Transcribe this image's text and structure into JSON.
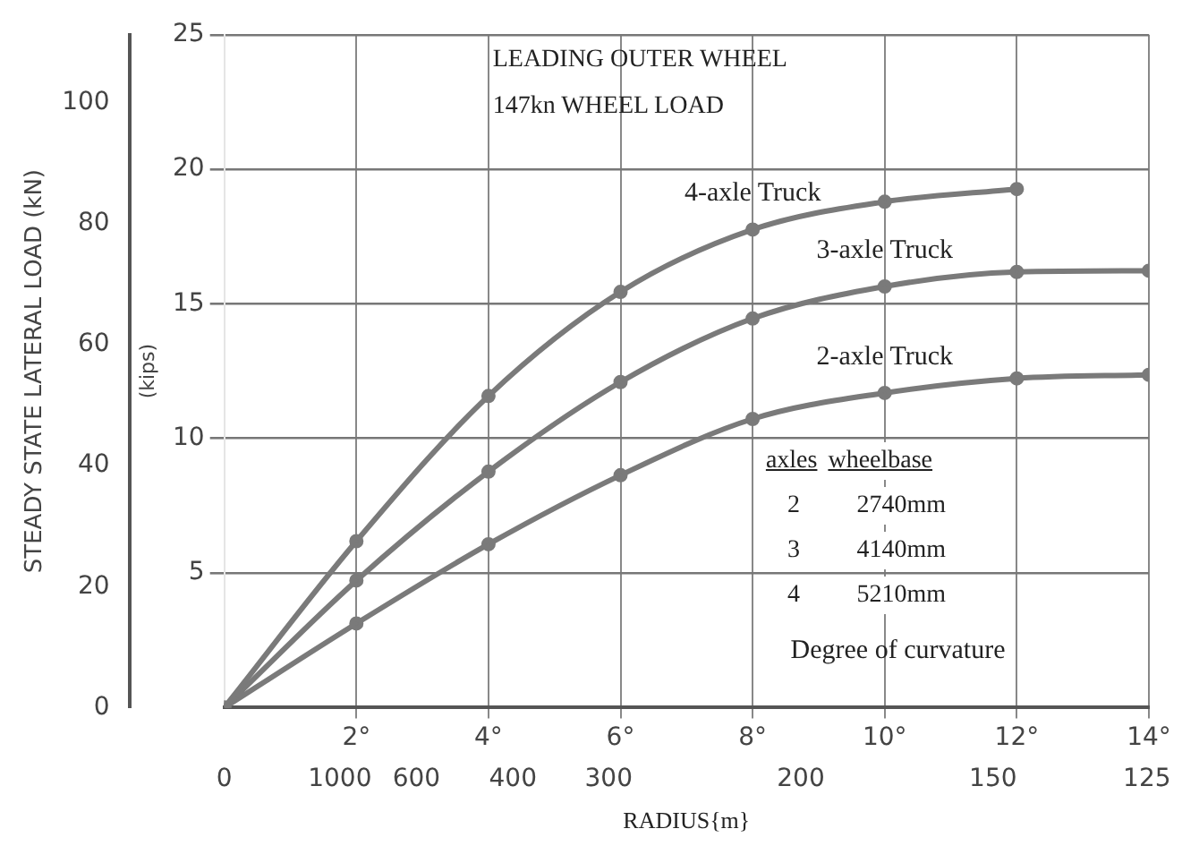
{
  "chart_data": {
    "type": "line",
    "xlabel": "Degree of curvature",
    "ylabel": "STEADY STATE LATERAL LOAD (kN)",
    "y2label": "(kips)",
    "x": [
      0,
      2,
      4,
      6,
      8,
      10,
      12,
      14
    ],
    "series": [
      {
        "name": "4-axle Truck",
        "color": "#7a7a7a",
        "values": [
          0,
          27.5,
          51.5,
          68.7,
          79,
          83.6,
          85.7,
          null
        ]
      },
      {
        "name": "3-axle Truck",
        "color": "#7a7a7a",
        "values": [
          0,
          21,
          39,
          53.8,
          64.3,
          69.6,
          72,
          72.2
        ]
      },
      {
        "name": "2-axle Truck",
        "color": "#7a7a7a",
        "values": [
          0,
          13.9,
          27,
          38.4,
          47.7,
          52,
          54.4,
          55
        ]
      }
    ],
    "xlim": [
      0,
      14
    ],
    "xticks": [
      {
        "value": 2,
        "label": "2°"
      },
      {
        "value": 4,
        "label": "4°"
      },
      {
        "value": 6,
        "label": "6°"
      },
      {
        "value": 8,
        "label": "8°"
      },
      {
        "value": 10,
        "label": "10°"
      },
      {
        "value": 12,
        "label": "12°"
      },
      {
        "value": 14,
        "label": "14°"
      }
    ],
    "ylim": [
      0,
      111.2
    ],
    "yticks": [
      0,
      20,
      40,
      60,
      80,
      100
    ],
    "y2lim": [
      0,
      25
    ],
    "y2ticks": [
      5,
      10,
      15,
      20,
      25
    ],
    "grid": true,
    "legend": false,
    "marker": "circle",
    "line_style": "solid",
    "annotations": [
      "LEADING OUTER WHEEL",
      "147kn WHEEL LOAD",
      "axles",
      "wheelbase",
      "2",
      "2740mm",
      "3",
      "4140mm",
      "4",
      "5210mm",
      "RADIUS{m}",
      "0",
      "1000",
      "600",
      "400",
      "300",
      "200",
      "150",
      "125"
    ]
  }
}
